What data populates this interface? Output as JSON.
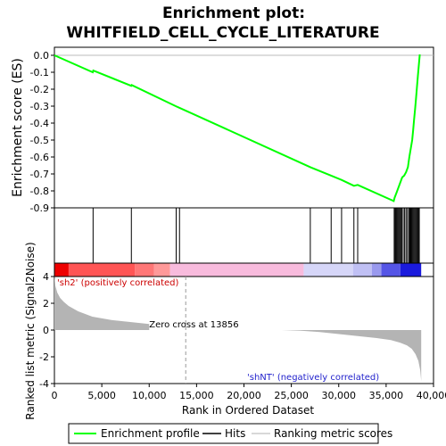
{
  "chart_data": {
    "type": "line",
    "title_line1": "Enrichment plot:",
    "title_line2": "WHITFIELD_CELL_CYCLE_LITERATURE",
    "es_panel": {
      "ylabel": "Enrichment score (ES)",
      "ylim": [
        -0.9,
        0.0
      ],
      "yticks": [
        "0.0",
        "-0.1",
        "-0.2",
        "-0.3",
        "-0.4",
        "-0.5",
        "-0.6",
        "-0.7",
        "-0.8",
        "-0.9"
      ],
      "ytick_values": [
        0.0,
        -0.1,
        -0.2,
        -0.3,
        -0.4,
        -0.5,
        -0.6,
        -0.7,
        -0.8,
        -0.9
      ],
      "line_color": "#00ff00",
      "series": [
        {
          "name": "Enrichment profile",
          "x": [
            0,
            4050,
            4100,
            8100,
            8150,
            12800,
            13200,
            27000,
            29200,
            30300,
            31600,
            32000,
            35800,
            35900,
            36100,
            36300,
            36500,
            36700,
            36900,
            37100,
            37300,
            37450,
            37600,
            37750,
            37850,
            37950,
            38050,
            38150,
            38250,
            38350,
            38450,
            38550
          ],
          "y": [
            0.0,
            -0.1,
            -0.09,
            -0.18,
            -0.175,
            -0.3,
            -0.31,
            -0.66,
            -0.71,
            -0.735,
            -0.77,
            -0.765,
            -0.86,
            -0.84,
            -0.81,
            -0.78,
            -0.75,
            -0.72,
            -0.71,
            -0.69,
            -0.66,
            -0.6,
            -0.55,
            -0.5,
            -0.44,
            -0.38,
            -0.32,
            -0.26,
            -0.19,
            -0.12,
            -0.06,
            0.005
          ]
        }
      ]
    },
    "hits_panel": {
      "hit_positions": [
        4080,
        8120,
        12850,
        13200,
        27000,
        29200,
        30300,
        31600,
        32000,
        35850,
        35950,
        36050,
        36150,
        36250,
        36350,
        36450,
        36550,
        36650,
        36800,
        36950,
        37100,
        37250,
        37400,
        37500,
        37600,
        37700,
        37800,
        37900,
        38000,
        38100,
        38200,
        38300,
        38400,
        38500
      ]
    },
    "ranking_bar": {
      "segments": [
        {
          "from": 0,
          "to": 1500,
          "color": "#ee0000"
        },
        {
          "from": 1500,
          "to": 8500,
          "color": "#ff5555"
        },
        {
          "from": 8500,
          "to": 10500,
          "color": "#ff7777"
        },
        {
          "from": 10500,
          "to": 12200,
          "color": "#ff9999"
        },
        {
          "from": 12200,
          "to": 26300,
          "color": "#f8bbdd"
        },
        {
          "from": 26300,
          "to": 31500,
          "color": "#d6d6f8"
        },
        {
          "from": 31500,
          "to": 33500,
          "color": "#c0c0f4"
        },
        {
          "from": 33500,
          "to": 34500,
          "color": "#9999ee"
        },
        {
          "from": 34500,
          "to": 36500,
          "color": "#5555e6"
        },
        {
          "from": 36500,
          "to": 38700,
          "color": "#1a1add"
        }
      ]
    },
    "metric_panel": {
      "ylabel": "Ranked list metric (Signal2Noise)",
      "ylim": [
        -4,
        4
      ],
      "yticks": [
        "4",
        "2",
        "0",
        "-2",
        "-4"
      ],
      "ytick_values": [
        4,
        2,
        0,
        -2,
        -4
      ],
      "fill_color": "#b4b4b4",
      "x": [
        0,
        100,
        300,
        600,
        1000,
        1500,
        2500,
        4000,
        6000,
        8000,
        10000,
        10005,
        12000,
        13856,
        16000,
        20000,
        24000,
        26000,
        28000,
        30000,
        32000,
        34000,
        35500,
        36500,
        37200,
        37700,
        38100,
        38400,
        38600,
        38700
      ],
      "y": [
        4.1,
        3.3,
        2.8,
        2.4,
        2.1,
        1.8,
        1.4,
        1.0,
        0.75,
        0.6,
        0.45,
        0.0,
        0.0,
        0.0,
        0.0,
        0.0,
        0.0,
        -0.05,
        -0.15,
        -0.3,
        -0.45,
        -0.6,
        -0.75,
        -0.95,
        -1.15,
        -1.4,
        -1.8,
        -2.3,
        -3.0,
        -3.8
      ],
      "zero_cross_label": "Zero cross at 13856",
      "zero_cross_x": 13856,
      "pos_label": "'sh2' (positively correlated)",
      "pos_color": "#cc0000",
      "neg_label": "'shNT' (negatively correlated)",
      "neg_color": "#2222cc"
    },
    "xaxis": {
      "xlabel": "Rank in Ordered Dataset",
      "xlim": [
        0,
        40000
      ],
      "xticks": [
        "0",
        "5,000",
        "10,000",
        "15,000",
        "20,000",
        "25,000",
        "30,000",
        "35,000",
        "40,000"
      ],
      "xtick_values": [
        0,
        5000,
        10000,
        15000,
        20000,
        25000,
        30000,
        35000,
        40000
      ]
    },
    "legend": {
      "items": [
        {
          "label": "Enrichment profile",
          "color": "#00ff00"
        },
        {
          "label": "Hits",
          "color": "#000000"
        },
        {
          "label": "Ranking metric scores",
          "color": "#cccccc"
        }
      ],
      "placement": "bottom"
    }
  }
}
